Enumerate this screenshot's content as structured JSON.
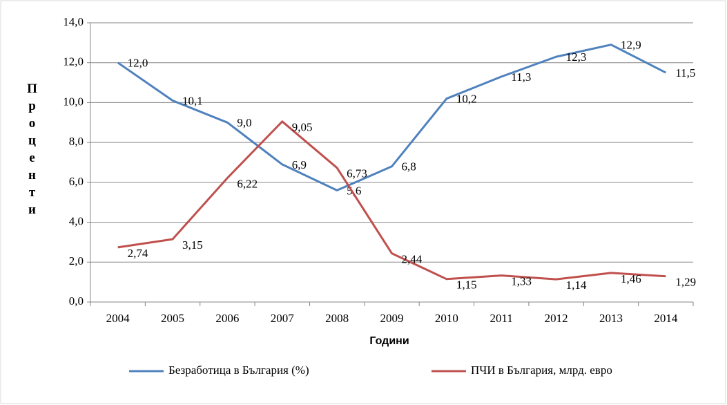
{
  "chart_data": {
    "type": "line",
    "y_label": "Проценти",
    "x_label": "Години",
    "categories": [
      "2004",
      "2005",
      "2006",
      "2007",
      "2008",
      "2009",
      "2010",
      "2011",
      "2012",
      "2013",
      "2014"
    ],
    "series": [
      {
        "name": "Безработица в България (%)",
        "color": "#4f81bd",
        "values": [
          12.0,
          10.1,
          9.0,
          6.9,
          5.6,
          6.8,
          10.2,
          11.3,
          12.3,
          12.9,
          11.5
        ],
        "value_labels": [
          "12,0",
          "10,1",
          "9,0",
          "6,9",
          "5,6",
          "6,8",
          "10,2",
          "11,3",
          "12,3",
          "12,9",
          "11,5"
        ]
      },
      {
        "name": "ПЧИ в България, млрд. евро",
        "color": "#c0504d",
        "values": [
          2.74,
          3.15,
          6.22,
          9.05,
          6.73,
          2.44,
          1.15,
          1.33,
          1.14,
          1.46,
          1.29
        ],
        "value_labels": [
          "2,74",
          "3,15",
          "6,22",
          "9,05",
          "6,73",
          "2,44",
          "1,15",
          "1,33",
          "1,14",
          "1,46",
          "1,29"
        ]
      }
    ],
    "ylim": [
      0,
      14
    ],
    "yticks": [
      {
        "value": 0,
        "label": "0,0"
      },
      {
        "value": 2,
        "label": "2,0"
      },
      {
        "value": 4,
        "label": "4,0"
      },
      {
        "value": 6,
        "label": "6,0"
      },
      {
        "value": 8,
        "label": "8,0"
      },
      {
        "value": 10,
        "label": "10,0"
      },
      {
        "value": 12,
        "label": "12,0"
      },
      {
        "value": 14,
        "label": "14,0"
      }
    ],
    "grid": true
  }
}
